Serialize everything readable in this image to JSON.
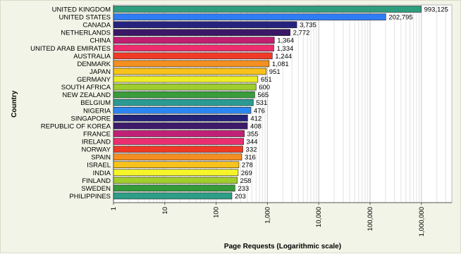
{
  "chart_data": {
    "type": "bar",
    "orientation": "horizontal",
    "xscale": "log",
    "xlim": [
      1,
      3000000
    ],
    "xlabel": "Page Requests (Logarithmic scale)",
    "ylabel": "Country",
    "xticks": [
      "1",
      "10",
      "100",
      "1,000",
      "10,000",
      "100,000",
      "1,000,000"
    ],
    "grid": "vertical gridlines",
    "categories": [
      "UNITED KINGDOM",
      "UNITED STATES",
      "CANADA",
      "NETHERLANDS",
      "CHINA",
      "UNITED ARAB EMIRATES",
      "AUSTRALIA",
      "DENMARK",
      "JAPAN",
      "GERMANY",
      "SOUTH AFRICA",
      "NEW ZEALAND",
      "BELGIUM",
      "NIGERIA",
      "SINGAPORE",
      "REPUBLIC OF KOREA",
      "FRANCE",
      "IRELAND",
      "NORWAY",
      "SPAIN",
      "ISRAEL",
      "INDIA",
      "FINLAND",
      "SWEDEN",
      "PHILIPPINES"
    ],
    "values": [
      993125,
      202795,
      3735,
      2772,
      1364,
      1334,
      1244,
      1081,
      951,
      651,
      600,
      565,
      531,
      476,
      412,
      408,
      355,
      344,
      332,
      316,
      278,
      269,
      258,
      233,
      203
    ],
    "value_labels": [
      "993,125",
      "202,795",
      "3,735",
      "2,772",
      "1,364",
      "1,334",
      "1,244",
      "1,081",
      "951",
      "651",
      "600",
      "565",
      "531",
      "476",
      "412",
      "408",
      "355",
      "344",
      "332",
      "316",
      "278",
      "269",
      "258",
      "233",
      "203"
    ],
    "colors": [
      "#2e9e7e",
      "#2f7df6",
      "#26237e",
      "#3b1866",
      "#c11f72",
      "#ee2d6e",
      "#f03a25",
      "#f3901f",
      "#f9c21b",
      "#ecec27",
      "#9ecd2d",
      "#3a9c3c",
      "#2b9a92",
      "#2b86f0",
      "#23237a",
      "#3d1b6a",
      "#c02076",
      "#eb2e70",
      "#ee3a27",
      "#f38f20",
      "#f8c21d",
      "#f5f52a",
      "#a0ce2f",
      "#349a3a",
      "#2d9e86"
    ]
  }
}
